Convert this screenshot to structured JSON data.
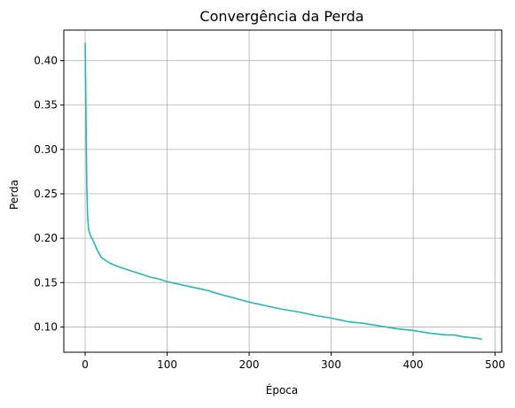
{
  "chart_data": {
    "type": "line",
    "title": "Convergência da Perda",
    "xlabel": "Época",
    "ylabel": "Perda",
    "xlim": [
      -26,
      508
    ],
    "ylim": [
      0.0715,
      0.4345
    ],
    "xticks": [
      0,
      100,
      200,
      300,
      400,
      500
    ],
    "yticks": [
      0.1,
      0.15,
      0.2,
      0.25,
      0.3,
      0.35,
      0.4
    ],
    "xtick_labels": [
      "0",
      "100",
      "200",
      "300",
      "400",
      "500"
    ],
    "ytick_labels": [
      "0.10",
      "0.15",
      "0.20",
      "0.25",
      "0.30",
      "0.35",
      "0.40"
    ],
    "grid": true,
    "series": [
      {
        "color": "#2ab5b5",
        "x": [
          0,
          1,
          2,
          3,
          4,
          5,
          7,
          10,
          15,
          20,
          25,
          30,
          40,
          50,
          60,
          70,
          80,
          90,
          100,
          120,
          140,
          150,
          160,
          180,
          200,
          220,
          240,
          260,
          280,
          300,
          320,
          340,
          360,
          380,
          400,
          420,
          440,
          450,
          460,
          470,
          480,
          484
        ],
        "y": [
          0.42,
          0.34,
          0.26,
          0.225,
          0.212,
          0.207,
          0.202,
          0.197,
          0.186,
          0.178,
          0.175,
          0.172,
          0.168,
          0.165,
          0.162,
          0.159,
          0.156,
          0.154,
          0.151,
          0.147,
          0.143,
          0.141,
          0.138,
          0.133,
          0.128,
          0.124,
          0.12,
          0.117,
          0.113,
          0.11,
          0.106,
          0.104,
          0.101,
          0.098,
          0.096,
          0.093,
          0.091,
          0.091,
          0.089,
          0.088,
          0.087,
          0.086
        ]
      }
    ]
  }
}
